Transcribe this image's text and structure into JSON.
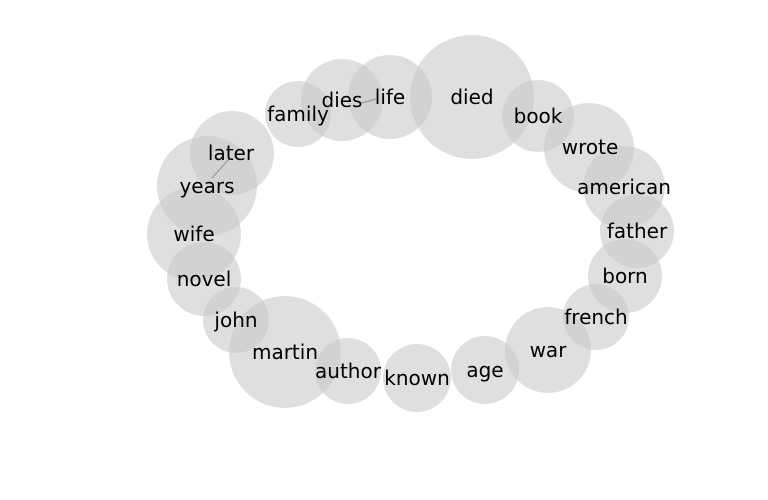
{
  "colors": {
    "bubble": "#c8c8c8",
    "text": "#000000",
    "background": "#ffffff"
  },
  "words": [
    "died",
    "book",
    "wrote",
    "american",
    "father",
    "born",
    "french",
    "war",
    "age",
    "known",
    "author",
    "martin",
    "john",
    "novel",
    "wife",
    "years",
    "later",
    "family",
    "dies",
    "life"
  ]
}
